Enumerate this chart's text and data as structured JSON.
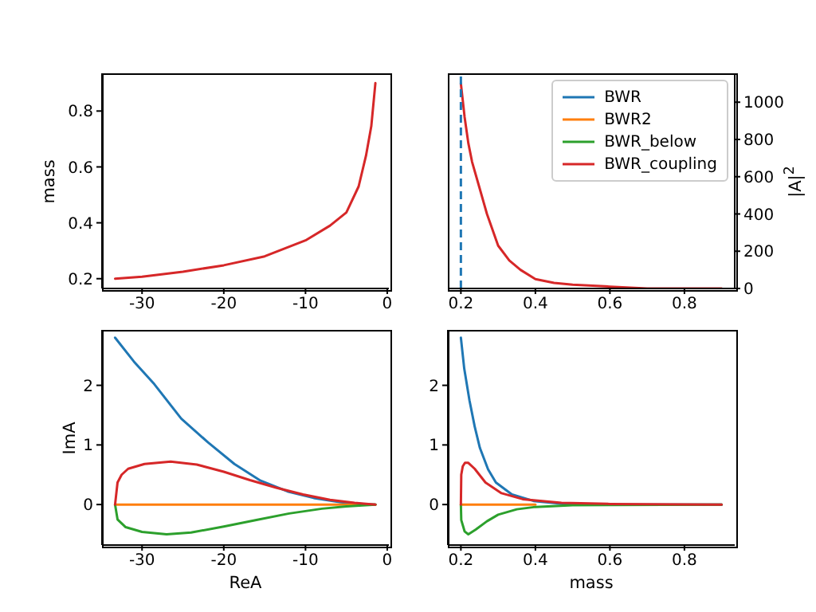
{
  "chart_data": [
    {
      "type": "line",
      "ylabel": "mass",
      "xlim": [
        -34.9,
        0.2
      ],
      "ylim": [
        0.165,
        0.935
      ],
      "xticks": [
        -30,
        -20,
        -10,
        0
      ],
      "yticks": [
        0.2,
        0.4,
        0.6,
        0.8
      ],
      "series": [
        {
          "color": "#d62728",
          "x": [
            -33.3,
            -30,
            -25,
            -20,
            -15,
            -10,
            -7,
            -5,
            -3.5,
            -2.6,
            -1.95,
            -1.45
          ],
          "values": [
            0.2,
            0.207,
            0.225,
            0.248,
            0.28,
            0.337,
            0.39,
            0.437,
            0.53,
            0.64,
            0.746,
            0.9
          ]
        }
      ]
    },
    {
      "type": "line",
      "y2label": "|A|$^{2}$",
      "xlim": [
        0.165,
        0.935
      ],
      "y2lim": [
        0,
        1155
      ],
      "xticks": [
        0.2,
        0.4,
        0.6,
        0.8
      ],
      "y2ticks": [
        0,
        200,
        400,
        600,
        800,
        1000
      ],
      "legend": "top right",
      "ref_lines": [
        {
          "axis": "x",
          "value": 0.2,
          "color": "#1f77b4",
          "line_style": "dashed"
        }
      ],
      "series": [
        {
          "name": "BWR",
          "color": "#1f77b4"
        },
        {
          "name": "BWR2",
          "color": "#ff7f0e"
        },
        {
          "name": "BWR_below",
          "color": "#2ca02c"
        },
        {
          "name": "BWR_coupling",
          "color": "#d62728",
          "axis": "y2",
          "x": [
            0.2,
            0.21,
            0.22,
            0.23,
            0.25,
            0.27,
            0.3,
            0.33,
            0.36,
            0.4,
            0.45,
            0.5,
            0.6,
            0.7,
            0.8,
            0.9
          ],
          "values": [
            1100,
            920,
            780,
            680,
            540,
            400,
            230,
            150,
            100,
            50,
            30,
            20,
            10,
            0,
            0,
            0
          ]
        }
      ]
    },
    {
      "type": "line",
      "xlabel": "ReA",
      "ylabel": "ImA",
      "xlim": [
        -34.9,
        0.2
      ],
      "ylim": [
        -0.68,
        2.93
      ],
      "xticks": [
        -30,
        -20,
        -10,
        0
      ],
      "yticks": [
        0,
        1,
        2
      ],
      "series": [
        {
          "color": "#1f77b4",
          "x": [
            -33.3,
            -31,
            -28.5,
            -25.2,
            -21.9,
            -18.7,
            -15.5,
            -12.2,
            -9,
            -5.7,
            -3,
            -1.45
          ],
          "values": [
            2.8,
            2.4,
            2.02,
            1.44,
            1.04,
            0.68,
            0.4,
            0.22,
            0.11,
            0.04,
            0.01,
            0
          ]
        },
        {
          "color": "#ff7f0e",
          "x": [
            -33.3,
            -1.45
          ],
          "values": [
            0,
            0
          ]
        },
        {
          "color": "#2ca02c",
          "x": [
            -33.3,
            -33,
            -32,
            -30,
            -27,
            -24,
            -20,
            -16,
            -12,
            -8,
            -5,
            -1.45
          ],
          "values": [
            0,
            -0.25,
            -0.38,
            -0.46,
            -0.5,
            -0.47,
            -0.37,
            -0.26,
            -0.15,
            -0.07,
            -0.03,
            0
          ]
        },
        {
          "color": "#d62728",
          "x": [
            -33.3,
            -33,
            -32.5,
            -31.7,
            -29.7,
            -26.5,
            -23.3,
            -20,
            -16.8,
            -13.5,
            -10.3,
            -7,
            -4,
            -1.45
          ],
          "values": [
            0,
            0.37,
            0.5,
            0.6,
            0.68,
            0.72,
            0.67,
            0.55,
            0.41,
            0.28,
            0.17,
            0.08,
            0.03,
            0
          ]
        }
      ]
    },
    {
      "type": "line",
      "xlabel": "mass",
      "xlim": [
        0.165,
        0.935
      ],
      "ylim": [
        -0.68,
        2.93
      ],
      "xticks": [
        0.2,
        0.4,
        0.6,
        0.8
      ],
      "yticks": [
        0,
        1,
        2
      ],
      "series": [
        {
          "color": "#1f77b4",
          "x": [
            0.2,
            0.209,
            0.223,
            0.237,
            0.251,
            0.273,
            0.294,
            0.337,
            0.395,
            0.48,
            0.6,
            0.9
          ],
          "values": [
            2.8,
            2.28,
            1.75,
            1.31,
            0.95,
            0.59,
            0.37,
            0.17,
            0.06,
            0.01,
            0,
            0
          ]
        },
        {
          "color": "#ff7f0e",
          "x": [
            0.2,
            0.25,
            0.3,
            0.35,
            0.4
          ],
          "values": [
            0,
            0,
            0,
            0,
            0
          ]
        },
        {
          "color": "#2ca02c",
          "x": [
            0.2,
            0.201,
            0.21,
            0.22,
            0.24,
            0.27,
            0.3,
            0.35,
            0.4,
            0.5,
            0.9
          ],
          "values": [
            0,
            -0.26,
            -0.45,
            -0.5,
            -0.42,
            -0.28,
            -0.17,
            -0.08,
            -0.04,
            -0.01,
            0
          ]
        },
        {
          "color": "#d62728",
          "x": [
            0.2,
            0.201,
            0.205,
            0.211,
            0.22,
            0.237,
            0.266,
            0.309,
            0.366,
            0.47,
            0.6,
            0.9
          ],
          "values": [
            0,
            0.5,
            0.64,
            0.7,
            0.7,
            0.6,
            0.37,
            0.19,
            0.09,
            0.03,
            0.01,
            0
          ]
        }
      ]
    }
  ]
}
